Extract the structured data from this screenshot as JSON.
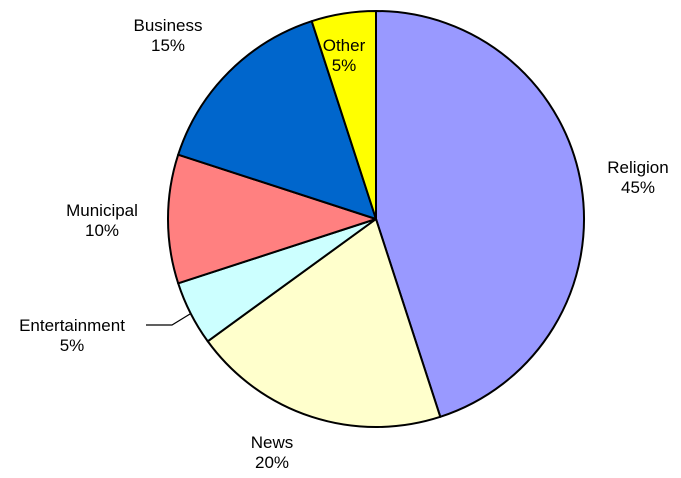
{
  "chart_data": {
    "type": "pie",
    "title": "",
    "start": "top",
    "direction": "clockwise",
    "legend": "none",
    "slices": [
      {
        "label": "Religion",
        "value": 45,
        "percent_label": "45%",
        "color": "#9999ff"
      },
      {
        "label": "News",
        "value": 20,
        "percent_label": "20%",
        "color": "#ffffcc"
      },
      {
        "label": "Entertainment",
        "value": 5,
        "percent_label": "5%",
        "color": "#ccffff"
      },
      {
        "label": "Municipal",
        "value": 10,
        "percent_label": "10%",
        "color": "#ff8080"
      },
      {
        "label": "Business",
        "value": 15,
        "percent_label": "15%",
        "color": "#0066cc"
      },
      {
        "label": "Other",
        "value": 5,
        "percent_label": "5%",
        "color": "#ffff00"
      }
    ]
  }
}
